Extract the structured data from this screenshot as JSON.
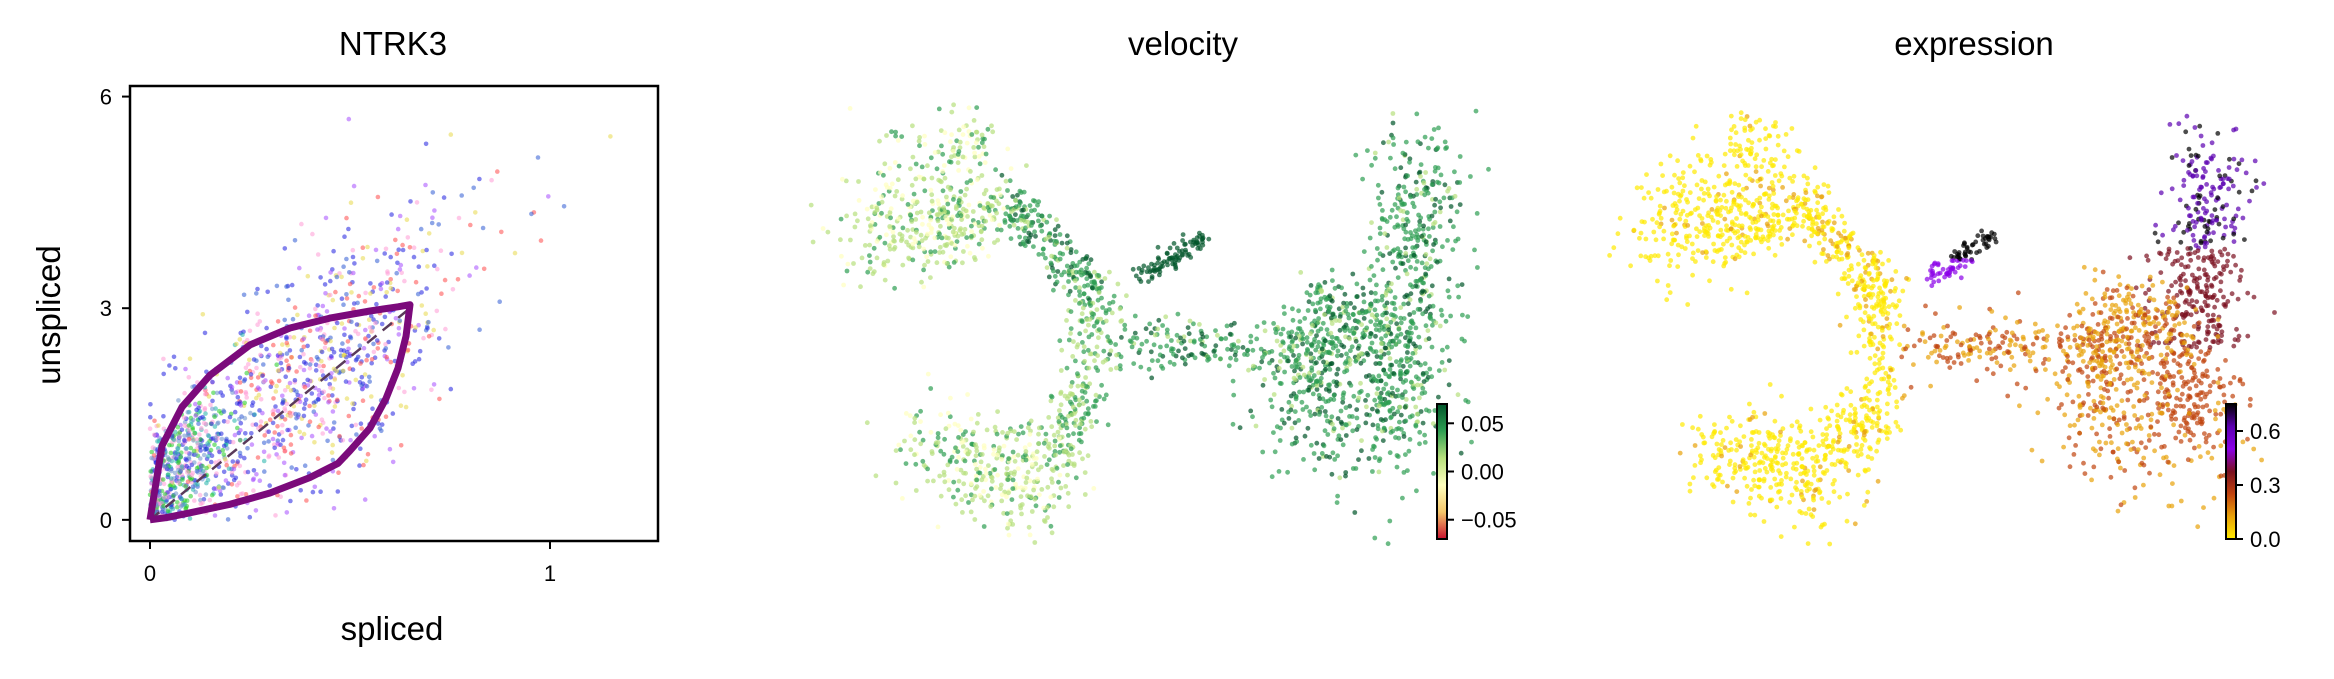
{
  "chart_data": [
    {
      "type": "scatter",
      "title": "NTRK3",
      "xlabel": "spliced",
      "ylabel": "unspliced",
      "xlim": [
        -0.05,
        1.27
      ],
      "ylim": [
        -0.3,
        6.15
      ],
      "xticks": [
        0,
        1
      ],
      "yticks": [
        0,
        3,
        6
      ],
      "cluster_colors": [
        "#1f1fe0",
        "#2f5bd4",
        "#e8d84a",
        "#ff4a4a",
        "#ff9ad5",
        "#22cc22",
        "#20b2aa",
        "#a64dff",
        "#6a8fcc"
      ],
      "points_approx": 1400,
      "steady_state_line": {
        "x": [
          0,
          0.65
        ],
        "y": [
          0,
          3.0
        ],
        "style": "dashed",
        "color": "#5a3a5a"
      },
      "fit_curve": {
        "color": "#7b0a7b",
        "upper": {
          "x": [
            0,
            0.03,
            0.08,
            0.15,
            0.25,
            0.35,
            0.45,
            0.55,
            0.62,
            0.65
          ],
          "y": [
            0,
            1.05,
            1.6,
            2.05,
            2.48,
            2.72,
            2.86,
            2.96,
            3.02,
            3.05
          ]
        },
        "lower": {
          "x": [
            0.65,
            0.64,
            0.62,
            0.59,
            0.55,
            0.5,
            0.47,
            0.4,
            0.3,
            0.2,
            0.1,
            0.04,
            0
          ],
          "y": [
            3.05,
            2.6,
            2.15,
            1.72,
            1.3,
            0.98,
            0.8,
            0.6,
            0.38,
            0.22,
            0.1,
            0.03,
            0
          ]
        }
      }
    },
    {
      "type": "scatter",
      "title": "velocity",
      "colorbar": {
        "ticks": [
          "0.05",
          "0.00",
          "−0.05"
        ],
        "values": [
          0.05,
          0.0,
          -0.05
        ],
        "range": [
          -0.07,
          0.07
        ],
        "colors": [
          "#c8102e",
          "#f5c76a",
          "#ffffbf",
          "#b7e07d",
          "#2e9e52",
          "#00552a"
        ]
      }
    },
    {
      "type": "scatter",
      "title": "expression",
      "colorbar": {
        "ticks": [
          "0.6",
          "0.3",
          "0.0"
        ],
        "values": [
          0.6,
          0.3,
          0.0
        ],
        "range": [
          0.0,
          0.75
        ],
        "colors": [
          "#ffea00",
          "#e8a20a",
          "#c1440e",
          "#7a1020",
          "#8a00e8",
          "#5b00b0",
          "#000000"
        ]
      }
    }
  ]
}
